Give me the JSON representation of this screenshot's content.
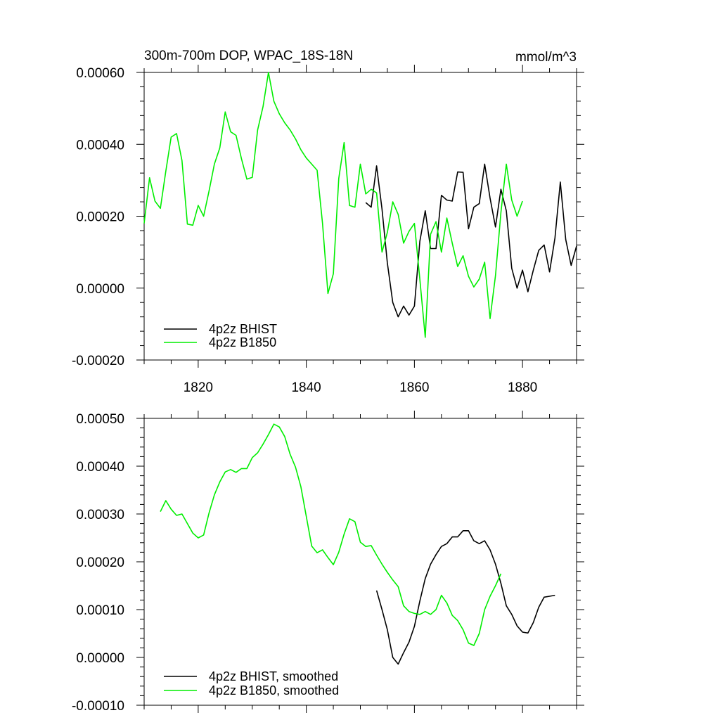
{
  "chart_data": [
    {
      "type": "line",
      "title": "300m-700m DOP, WPAC_18S-18N",
      "units": "mmol/m^3",
      "xlim": [
        1810,
        1890
      ],
      "ylim": [
        -0.0002,
        0.0006
      ],
      "x_ticks": [
        1820,
        1840,
        1860,
        1880
      ],
      "x_tick_labels": [
        "1820",
        "1840",
        "1860",
        "1880"
      ],
      "y_ticks": [
        -0.0002,
        0.0,
        0.0002,
        0.0004,
        0.0006
      ],
      "y_tick_labels": [
        "-0.00020",
        "0.00000",
        "0.00020",
        "0.00040",
        "0.00060"
      ],
      "legend_position": "bottom-left",
      "series": [
        {
          "name": "4p2z BHIST",
          "color": "#000000",
          "x_start": 1851,
          "values": [
            0.000238,
            0.000225,
            0.00034,
            0.00022,
            7e-05,
            -4e-05,
            -8e-05,
            -5e-05,
            -7.5e-05,
            -5e-05,
            0.00013,
            0.000215,
            0.00011,
            0.00011,
            0.000258,
            0.000245,
            0.000242,
            0.000323,
            0.000322,
            0.000165,
            0.000225,
            0.000235,
            0.000345,
            0.00025,
            0.00017,
            0.000275,
            0.000215,
            5.5e-05,
            0.0,
            5e-05,
            -1e-05,
            5e-05,
            0.000105,
            0.00012,
            4.5e-05,
            0.00014,
            0.000295,
            0.000135,
            6.3e-05,
            0.000117
          ]
        },
        {
          "name": "4p2z B1850",
          "color": "#00ee00",
          "x_start": 1810,
          "values": [
            0.00018,
            0.000307,
            0.000242,
            0.000222,
            0.000325,
            0.00042,
            0.00043,
            0.000355,
            0.000178,
            0.000175,
            0.00023,
            0.0002,
            0.00027,
            0.000345,
            0.00039,
            0.00049,
            0.000435,
            0.000425,
            0.00036,
            0.000303,
            0.000308,
            0.00044,
            0.000505,
            0.0006,
            0.00052,
            0.000485,
            0.00046,
            0.00044,
            0.000415,
            0.000385,
            0.000362,
            0.000345,
            0.000328,
            0.00018,
            -1.5e-05,
            4e-05,
            0.000305,
            0.000405,
            0.00023,
            0.000225,
            0.000345,
            0.000262,
            0.000275,
            0.000265,
            0.0001,
            0.000155,
            0.00024,
            0.000205,
            0.000125,
            0.000158,
            0.00018,
            2.5e-05,
            -0.000137,
            0.00015,
            0.000185,
            0.0001,
            0.000195,
            0.000125,
            6e-05,
            9e-05,
            3.3e-05,
            3e-06,
            2.5e-05,
            7.2e-05,
            -8.5e-05,
            3.5e-05,
            0.00021,
            0.000345,
            0.000245,
            0.0002,
            0.000242
          ]
        }
      ]
    },
    {
      "type": "line",
      "title": "",
      "xlim": [
        1810,
        1890
      ],
      "ylim": [
        -0.0001,
        0.0005
      ],
      "x_ticks": [
        1820,
        1840,
        1860,
        1880
      ],
      "y_ticks": [
        -0.0001,
        0.0,
        0.0001,
        0.0002,
        0.0003,
        0.0004,
        0.0005
      ],
      "y_tick_labels": [
        "-0.00010",
        "0.00000",
        "0.00010",
        "0.00020",
        "0.00030",
        "0.00040",
        "0.00050"
      ],
      "legend_position": "bottom-left",
      "series": [
        {
          "name": "4p2z BHIST, smoothed",
          "color": "#000000",
          "x_start": 1853,
          "values": [
            0.00014,
            0.0001,
            5.8e-05,
            0.0,
            -1.4e-05,
            1e-05,
            3.2e-05,
            6.5e-05,
            0.000118,
            0.000165,
            0.000195,
            0.000215,
            0.000232,
            0.000238,
            0.000252,
            0.000252,
            0.000265,
            0.000265,
            0.000244,
            0.000238,
            0.000244,
            0.000225,
            0.000195,
            0.000155,
            0.000108,
            9e-05,
            6.6e-05,
            5.3e-05,
            5.1e-05,
            7.3e-05,
            0.000105,
            0.000126,
            0.000128,
            0.00013
          ]
        },
        {
          "name": "4p2z B1850, smoothed",
          "color": "#00ee00",
          "x_start": 1813,
          "values": [
            0.000305,
            0.000328,
            0.00031,
            0.000297,
            0.0003,
            0.00028,
            0.00026,
            0.00025,
            0.000256,
            0.000302,
            0.00034,
            0.000367,
            0.000388,
            0.000393,
            0.000387,
            0.000395,
            0.000395,
            0.000418,
            0.000428,
            0.000446,
            0.000466,
            0.000488,
            0.000482,
            0.000462,
            0.000425,
            0.000398,
            0.000357,
            0.000295,
            0.000233,
            0.000219,
            0.000225,
            0.000209,
            0.000194,
            0.00022,
            0.000258,
            0.00029,
            0.000284,
            0.000241,
            0.000232,
            0.000234,
            0.000214,
            0.000195,
            0.000178,
            0.000162,
            0.000148,
            0.000108,
            9.6e-05,
            9.2e-05,
            9e-05,
            9.6e-05,
            9e-05,
            0.0001,
            0.00013,
            0.000114,
            8.8e-05,
            7.7e-05,
            5.8e-05,
            3e-05,
            2.5e-05,
            5e-05,
            0.0001,
            0.000128,
            0.00015,
            0.000175
          ]
        }
      ]
    }
  ]
}
